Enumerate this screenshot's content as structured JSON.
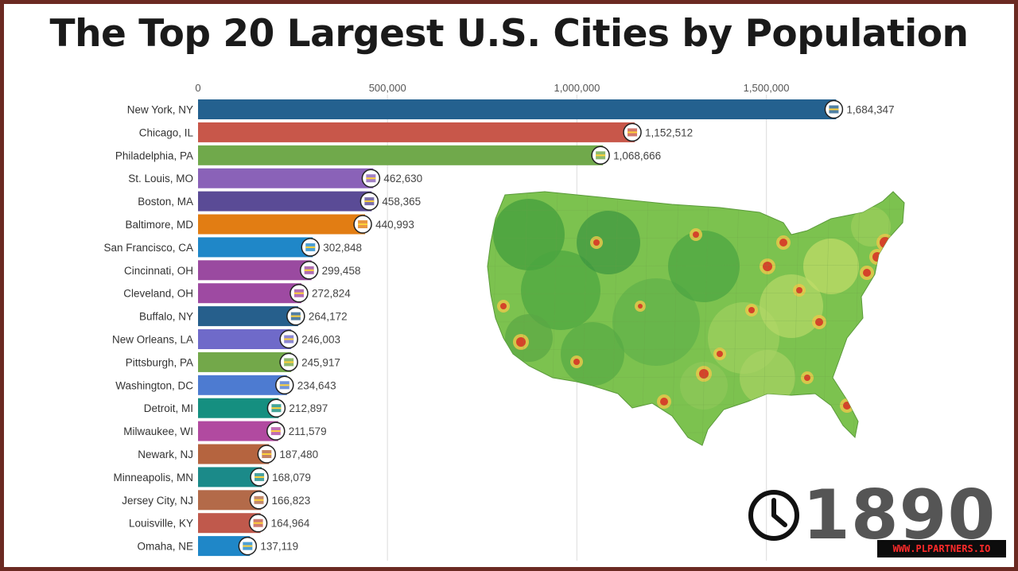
{
  "title": "The Top 20 Largest U.S. Cities by Population",
  "year": "1890",
  "watermark": "WWW.PLPARTNERS.IO",
  "icons": {
    "clock": "clock-icon",
    "map": "us-population-density-map"
  },
  "chart_data": {
    "type": "bar",
    "orientation": "horizontal",
    "title": "The Top 20 Largest U.S. Cities by Population",
    "xlim": [
      0,
      1750000
    ],
    "x_ticks": [
      {
        "value": 0,
        "label": "0"
      },
      {
        "value": 500000,
        "label": "500,000"
      },
      {
        "value": 1000000,
        "label": "1,000,000"
      },
      {
        "value": 1500000,
        "label": "1,500,000"
      }
    ],
    "grid": true,
    "bars": [
      {
        "city": "New York, NY",
        "value": 1684347,
        "label": "1,684,347",
        "color": "#24618f"
      },
      {
        "city": "Chicago, IL",
        "value": 1152512,
        "label": "1,152,512",
        "color": "#c8574a"
      },
      {
        "city": "Philadelphia, PA",
        "value": 1068666,
        "label": "1,068,666",
        "color": "#70a94b"
      },
      {
        "city": "St. Louis, MO",
        "value": 462630,
        "label": "462,630",
        "color": "#8a62b8"
      },
      {
        "city": "Boston, MA",
        "value": 458365,
        "label": "458,365",
        "color": "#5a4b96"
      },
      {
        "city": "Baltimore, MD",
        "value": 440993,
        "label": "440,993",
        "color": "#e27d13"
      },
      {
        "city": "San Francisco, CA",
        "value": 302848,
        "label": "302,848",
        "color": "#1f87c8"
      },
      {
        "city": "Cincinnati, OH",
        "value": 299458,
        "label": "299,458",
        "color": "#9a4aa0"
      },
      {
        "city": "Cleveland, OH",
        "value": 272824,
        "label": "272,824",
        "color": "#9e4aa2"
      },
      {
        "city": "Buffalo, NY",
        "value": 264172,
        "label": "264,172",
        "color": "#265f8c"
      },
      {
        "city": "New Orleans, LA",
        "value": 246003,
        "label": "246,003",
        "color": "#6f6ac9"
      },
      {
        "city": "Pittsburgh, PA",
        "value": 245917,
        "label": "245,917",
        "color": "#73a84a"
      },
      {
        "city": "Washington, DC",
        "value": 234643,
        "label": "234,643",
        "color": "#4d7bd1"
      },
      {
        "city": "Detroit, MI",
        "value": 212897,
        "label": "212,897",
        "color": "#158f80"
      },
      {
        "city": "Milwaukee, WI",
        "value": 211579,
        "label": "211,579",
        "color": "#b14aa0"
      },
      {
        "city": "Newark, NJ",
        "value": 187480,
        "label": "187,480",
        "color": "#b5643f"
      },
      {
        "city": "Minneapolis, MN",
        "value": 168079,
        "label": "168,079",
        "color": "#1b8a89"
      },
      {
        "city": "Jersey City, NJ",
        "value": 166823,
        "label": "166,823",
        "color": "#b36a49"
      },
      {
        "city": "Louisville, KY",
        "value": 164964,
        "label": "164,964",
        "color": "#c0594c"
      },
      {
        "city": "Omaha, NE",
        "value": 137119,
        "label": "137,119",
        "color": "#1f87c8"
      }
    ]
  }
}
